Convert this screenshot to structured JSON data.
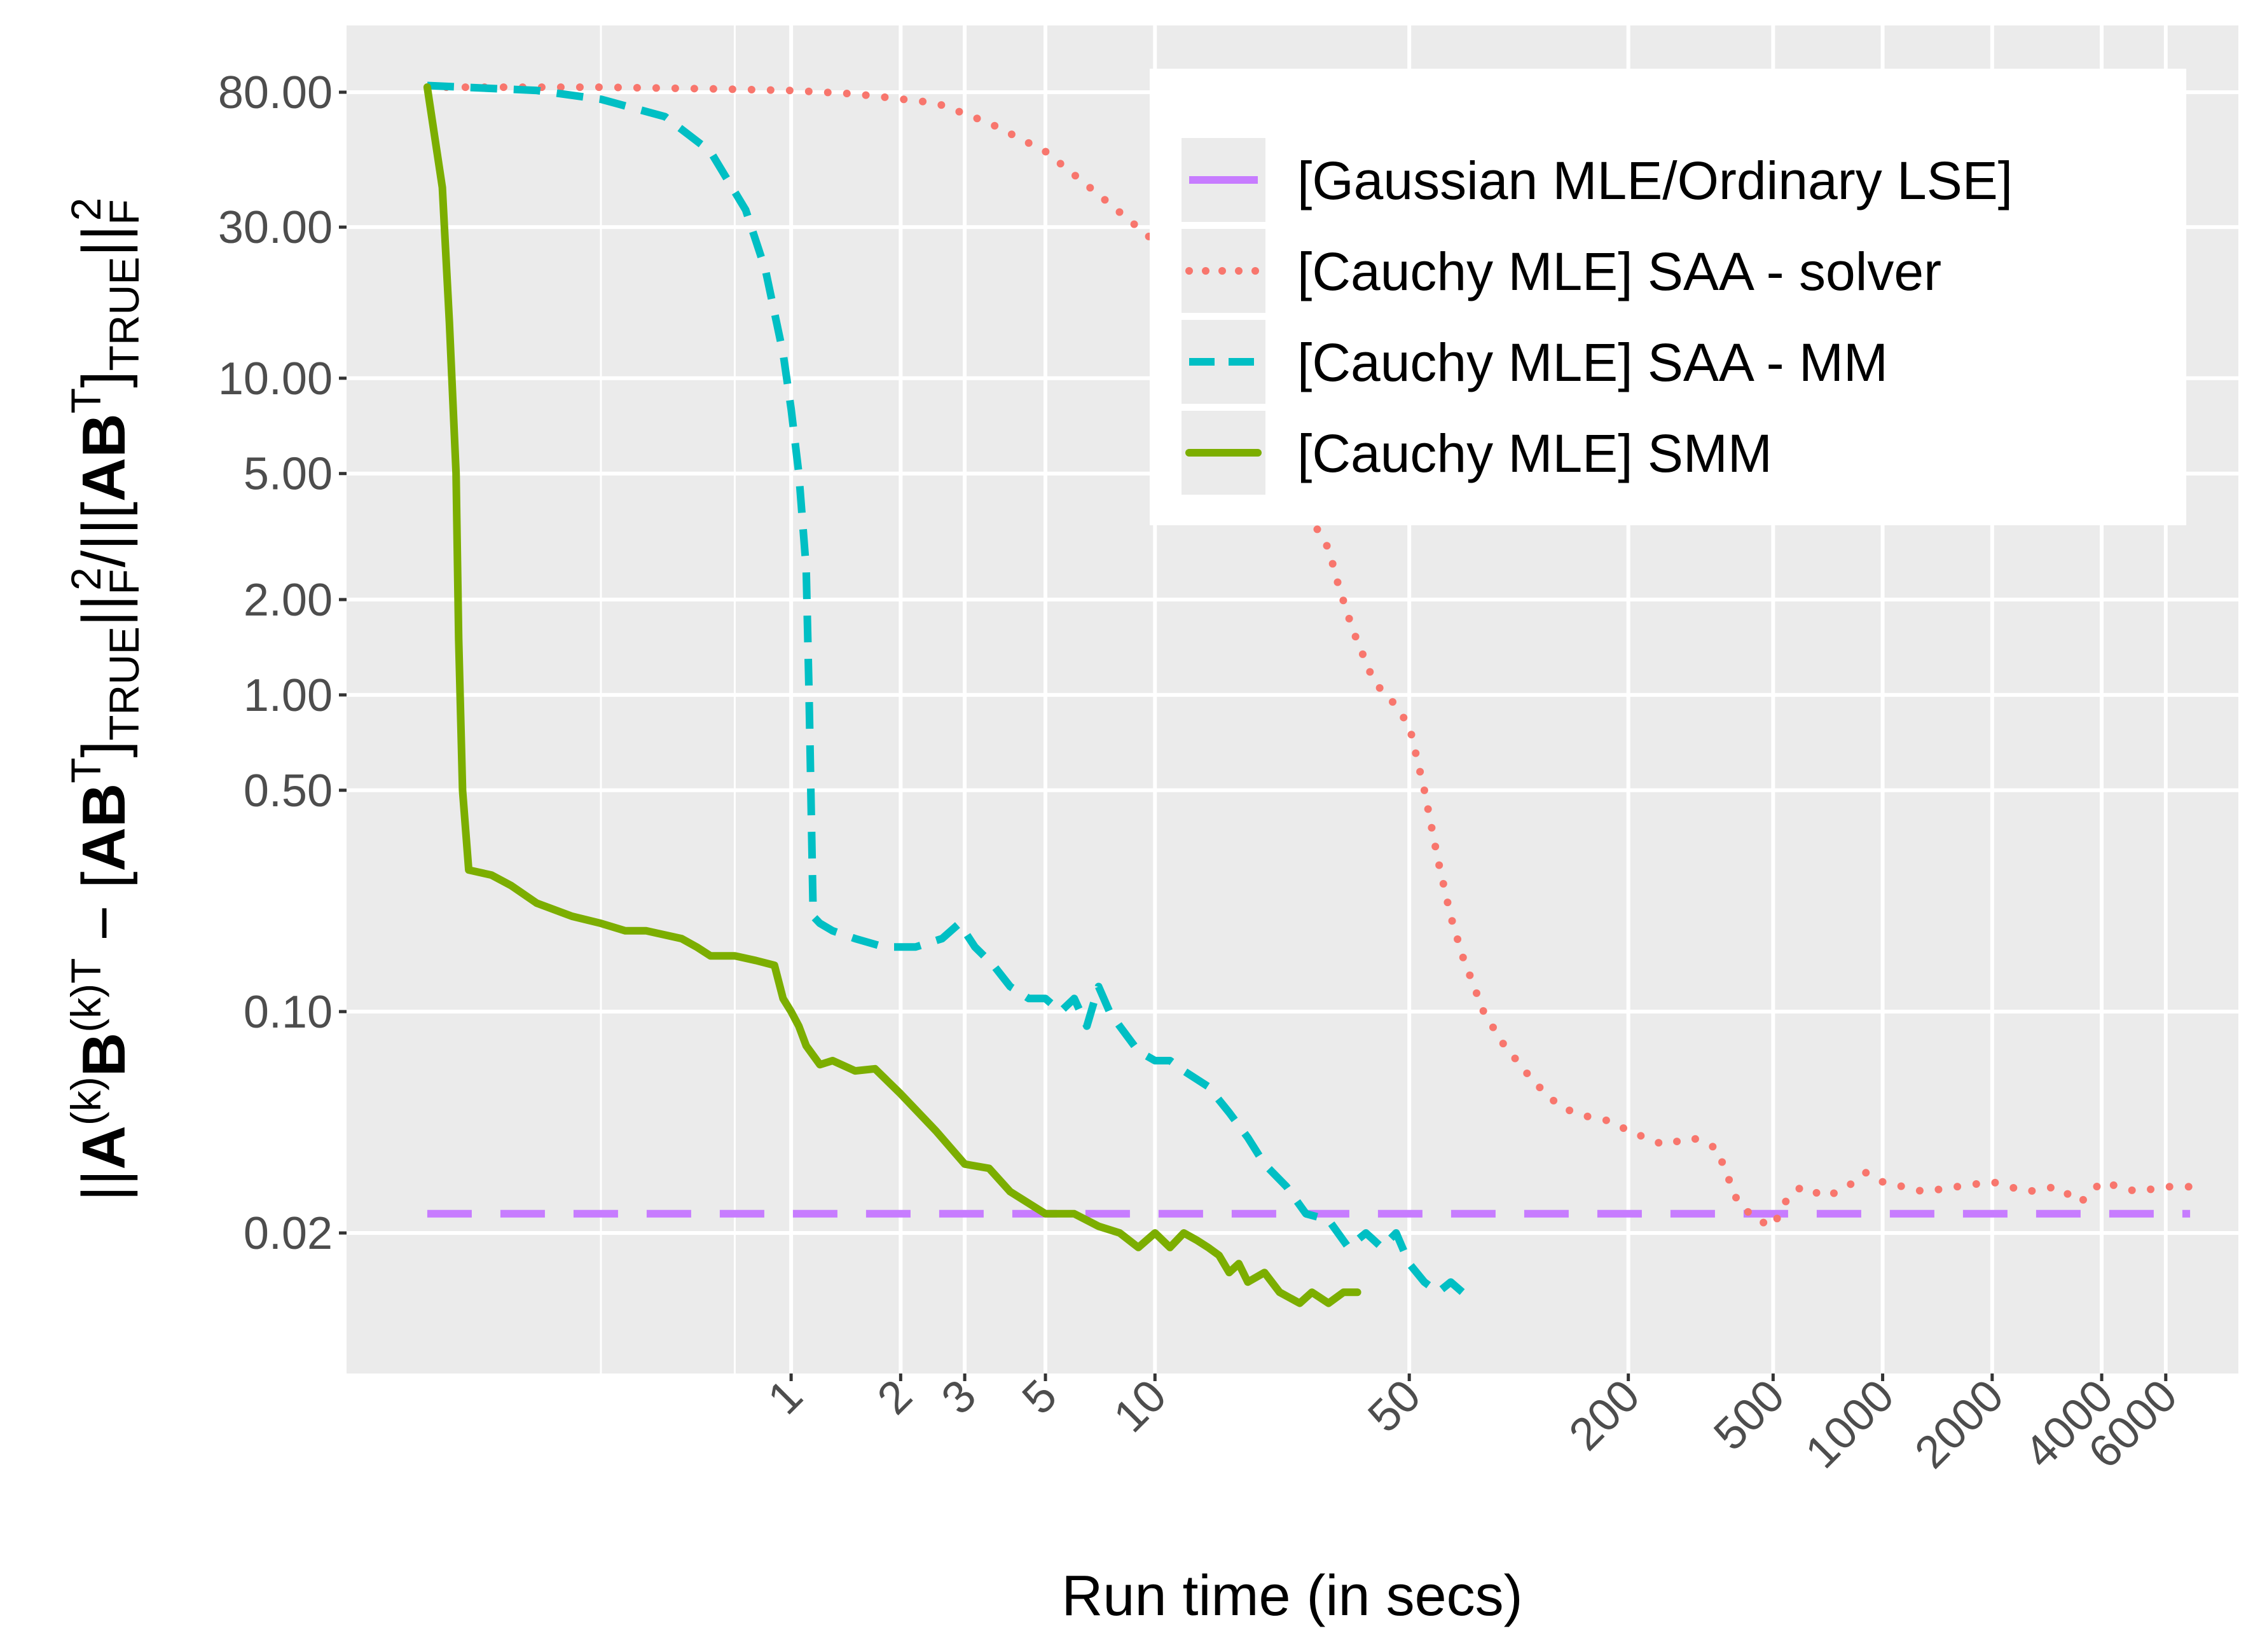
{
  "chart_data": {
    "type": "line",
    "xlabel": "Run time (in secs)",
    "ylabel": {
      "plain": "||A(k)B(k)T − [ABT]TRUE||F2/||[ABT]TRUE||F2",
      "parts": [
        "||",
        "A",
        "(k)",
        "B",
        "(k)T",
        " − ",
        "[",
        "AB",
        "T",
        "]",
        "TRUE",
        "||",
        "F",
        "2",
        "/||[",
        "AB",
        "T",
        "]",
        "TRUE",
        "||",
        "F",
        "2"
      ]
    },
    "x_scale": "log",
    "y_scale": "log",
    "xlim": [
      0.06,
      9500
    ],
    "ylim": [
      0.0072,
      130
    ],
    "x_ticks": [
      1,
      2,
      3,
      5,
      10,
      50,
      200,
      500,
      1000,
      2000,
      4000,
      6000
    ],
    "x_tick_labels": [
      "1",
      "2",
      "3",
      "5",
      "10",
      "50",
      "200",
      "500",
      "1000",
      "2000",
      "4000",
      "6000"
    ],
    "y_ticks": [
      0.02,
      0.1,
      0.5,
      1,
      2,
      5,
      10,
      30,
      80
    ],
    "y_tick_labels": [
      "0.02",
      "0.10",
      "0.50",
      "1.00",
      "2.00",
      "5.00",
      "10.00",
      "30.00",
      "80.00"
    ],
    "grid": true,
    "legend_position": "top-right",
    "series": [
      {
        "name": "[Gaussian MLE/Ordinary LSE]",
        "color": "#C77CFF",
        "style": "longdash",
        "x": [
          0.1,
          7000
        ],
        "y": [
          0.023,
          0.023
        ]
      },
      {
        "name": "[Cauchy MLE] SAA - solver",
        "color": "#F8766D",
        "style": "dotted",
        "x": [
          0.1,
          0.3,
          0.6,
          1.0,
          1.5,
          2.5,
          3.5,
          5,
          7,
          10,
          13,
          17,
          22,
          25,
          28,
          30,
          32,
          35,
          40,
          45,
          50,
          55,
          60,
          65,
          70,
          80,
          90,
          110,
          130,
          150,
          180,
          200,
          250,
          300,
          350,
          400,
          450,
          500,
          550,
          600,
          700,
          800,
          900,
          1000,
          1300,
          1600,
          2000,
          2500,
          3000,
          3500,
          4000,
          5000,
          6000,
          7000
        ],
        "y": [
          83,
          83,
          82,
          81,
          79,
          74,
          64,
          52,
          38,
          27,
          19,
          13,
          8,
          5.2,
          3.3,
          2.9,
          2.2,
          1.6,
          1.1,
          0.95,
          0.8,
          0.5,
          0.3,
          0.2,
          0.15,
          0.1,
          0.08,
          0.06,
          0.05,
          0.047,
          0.045,
          0.042,
          0.038,
          0.04,
          0.037,
          0.025,
          0.022,
          0.021,
          0.026,
          0.028,
          0.026,
          0.028,
          0.031,
          0.029,
          0.027,
          0.028,
          0.029,
          0.027,
          0.028,
          0.025,
          0.029,
          0.027,
          0.028,
          0.028
        ]
      },
      {
        "name": "[Cauchy MLE] SAA - MM",
        "color": "#00BFC4",
        "style": "dashed",
        "x": [
          0.1,
          0.2,
          0.3,
          0.45,
          0.6,
          0.75,
          0.85,
          0.95,
          1.0,
          1.05,
          1.1,
          1.12,
          1.15,
          1.2,
          1.3,
          1.5,
          1.8,
          2.2,
          2.6,
          2.9,
          3.2,
          3.6,
          4.0,
          4.5,
          5.0,
          5.5,
          6.0,
          6.5,
          7.0,
          7.5,
          8,
          9,
          10,
          11,
          12,
          14,
          16,
          18,
          20,
          23,
          26,
          30,
          34,
          38,
          42,
          46,
          50,
          55,
          60,
          65,
          70,
          75
        ],
        "y": [
          84,
          81,
          76,
          67,
          52,
          34,
          22,
          12,
          8,
          5,
          2.5,
          1.0,
          0.2,
          0.19,
          0.18,
          0.17,
          0.16,
          0.16,
          0.17,
          0.19,
          0.16,
          0.14,
          0.12,
          0.11,
          0.11,
          0.1,
          0.11,
          0.09,
          0.12,
          0.1,
          0.09,
          0.075,
          0.07,
          0.07,
          0.065,
          0.058,
          0.048,
          0.04,
          0.033,
          0.028,
          0.023,
          0.022,
          0.018,
          0.02,
          0.018,
          0.02,
          0.016,
          0.014,
          0.013,
          0.014,
          0.013,
          0.014
        ]
      },
      {
        "name": "[Cauchy MLE] SMM",
        "color": "#7CAE00",
        "style": "solid",
        "x": [
          0.1,
          0.11,
          0.115,
          0.12,
          0.122,
          0.125,
          0.13,
          0.15,
          0.17,
          0.2,
          0.25,
          0.3,
          0.35,
          0.4,
          0.5,
          0.55,
          0.6,
          0.7,
          0.8,
          0.9,
          0.95,
          1.0,
          1.05,
          1.1,
          1.2,
          1.3,
          1.5,
          1.7,
          2.0,
          2.5,
          3.0,
          3.5,
          4.0,
          5.0,
          6.0,
          7.0,
          8.0,
          9.0,
          10,
          11,
          12,
          13,
          14,
          15,
          16,
          17,
          18,
          20,
          22,
          25,
          27,
          30,
          33,
          36
        ],
        "y": [
          83,
          40,
          15,
          5,
          1.5,
          0.5,
          0.28,
          0.27,
          0.25,
          0.22,
          0.2,
          0.19,
          0.18,
          0.18,
          0.17,
          0.16,
          0.15,
          0.15,
          0.145,
          0.14,
          0.11,
          0.1,
          0.09,
          0.078,
          0.068,
          0.07,
          0.065,
          0.066,
          0.055,
          0.042,
          0.033,
          0.032,
          0.027,
          0.023,
          0.023,
          0.021,
          0.02,
          0.018,
          0.02,
          0.018,
          0.02,
          0.019,
          0.018,
          0.017,
          0.015,
          0.016,
          0.014,
          0.015,
          0.013,
          0.012,
          0.013,
          0.012,
          0.013,
          0.013
        ]
      }
    ]
  }
}
